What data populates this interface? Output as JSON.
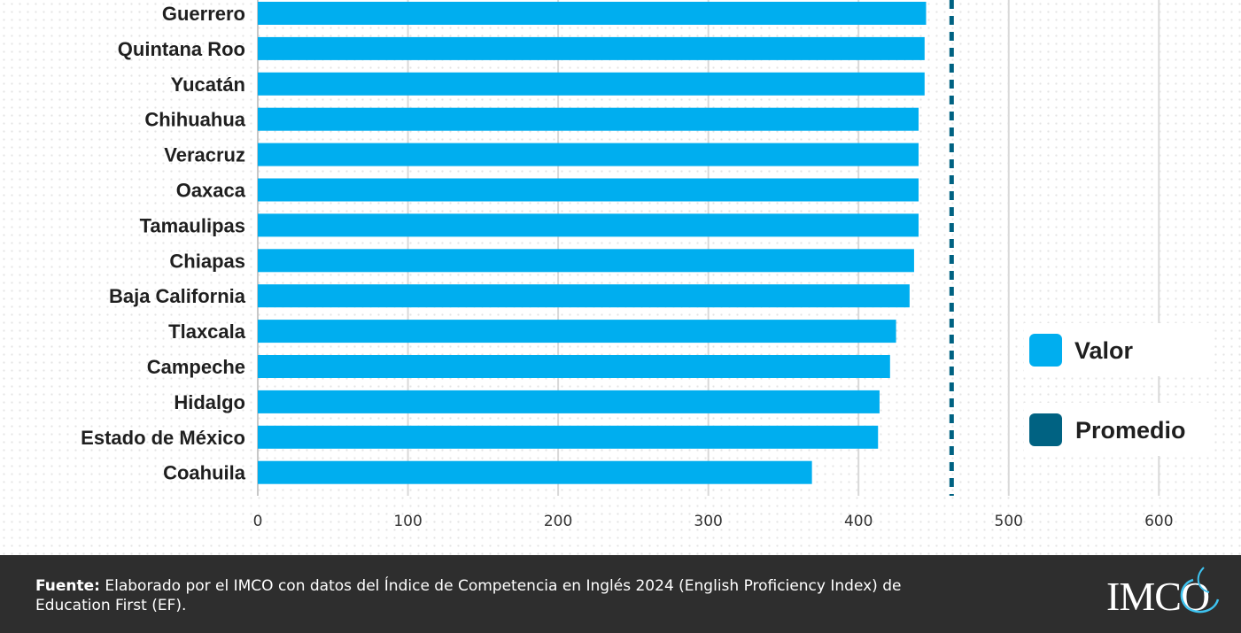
{
  "chart_data": {
    "type": "bar",
    "orientation": "horizontal",
    "categories": [
      "Guerrero",
      "Quintana Roo",
      "Yucatán",
      "Chihuahua",
      "Veracruz",
      "Oaxaca",
      "Tamaulipas",
      "Chiapas",
      "Baja California",
      "Tlaxcala",
      "Campeche",
      "Hidalgo",
      "Estado de México",
      "Coahuila"
    ],
    "series": [
      {
        "name": "Valor",
        "values": [
          445,
          444,
          444,
          440,
          440,
          440,
          440,
          437,
          434,
          425,
          421,
          414,
          413,
          369
        ],
        "color": "#00aeef"
      }
    ],
    "reference_line": {
      "name": "Promedio",
      "value": 462,
      "color": "#006282",
      "style": "dashed"
    },
    "xlim": [
      0,
      600
    ],
    "xticks": [
      0,
      100,
      200,
      300,
      400,
      500,
      600
    ],
    "grid": "vertical",
    "legend": {
      "placement": "right",
      "entries": [
        {
          "label": "Valor",
          "color": "#00aeef"
        },
        {
          "label": "Promedio",
          "color": "#006282"
        }
      ]
    }
  },
  "footer": {
    "source_label": "Fuente:",
    "source_text": " Elaborado por el IMCO con datos del Índice de Competencia en Inglés 2024 (English Proficiency Index) de Education First (EF).",
    "logo_text": "IMCO"
  }
}
